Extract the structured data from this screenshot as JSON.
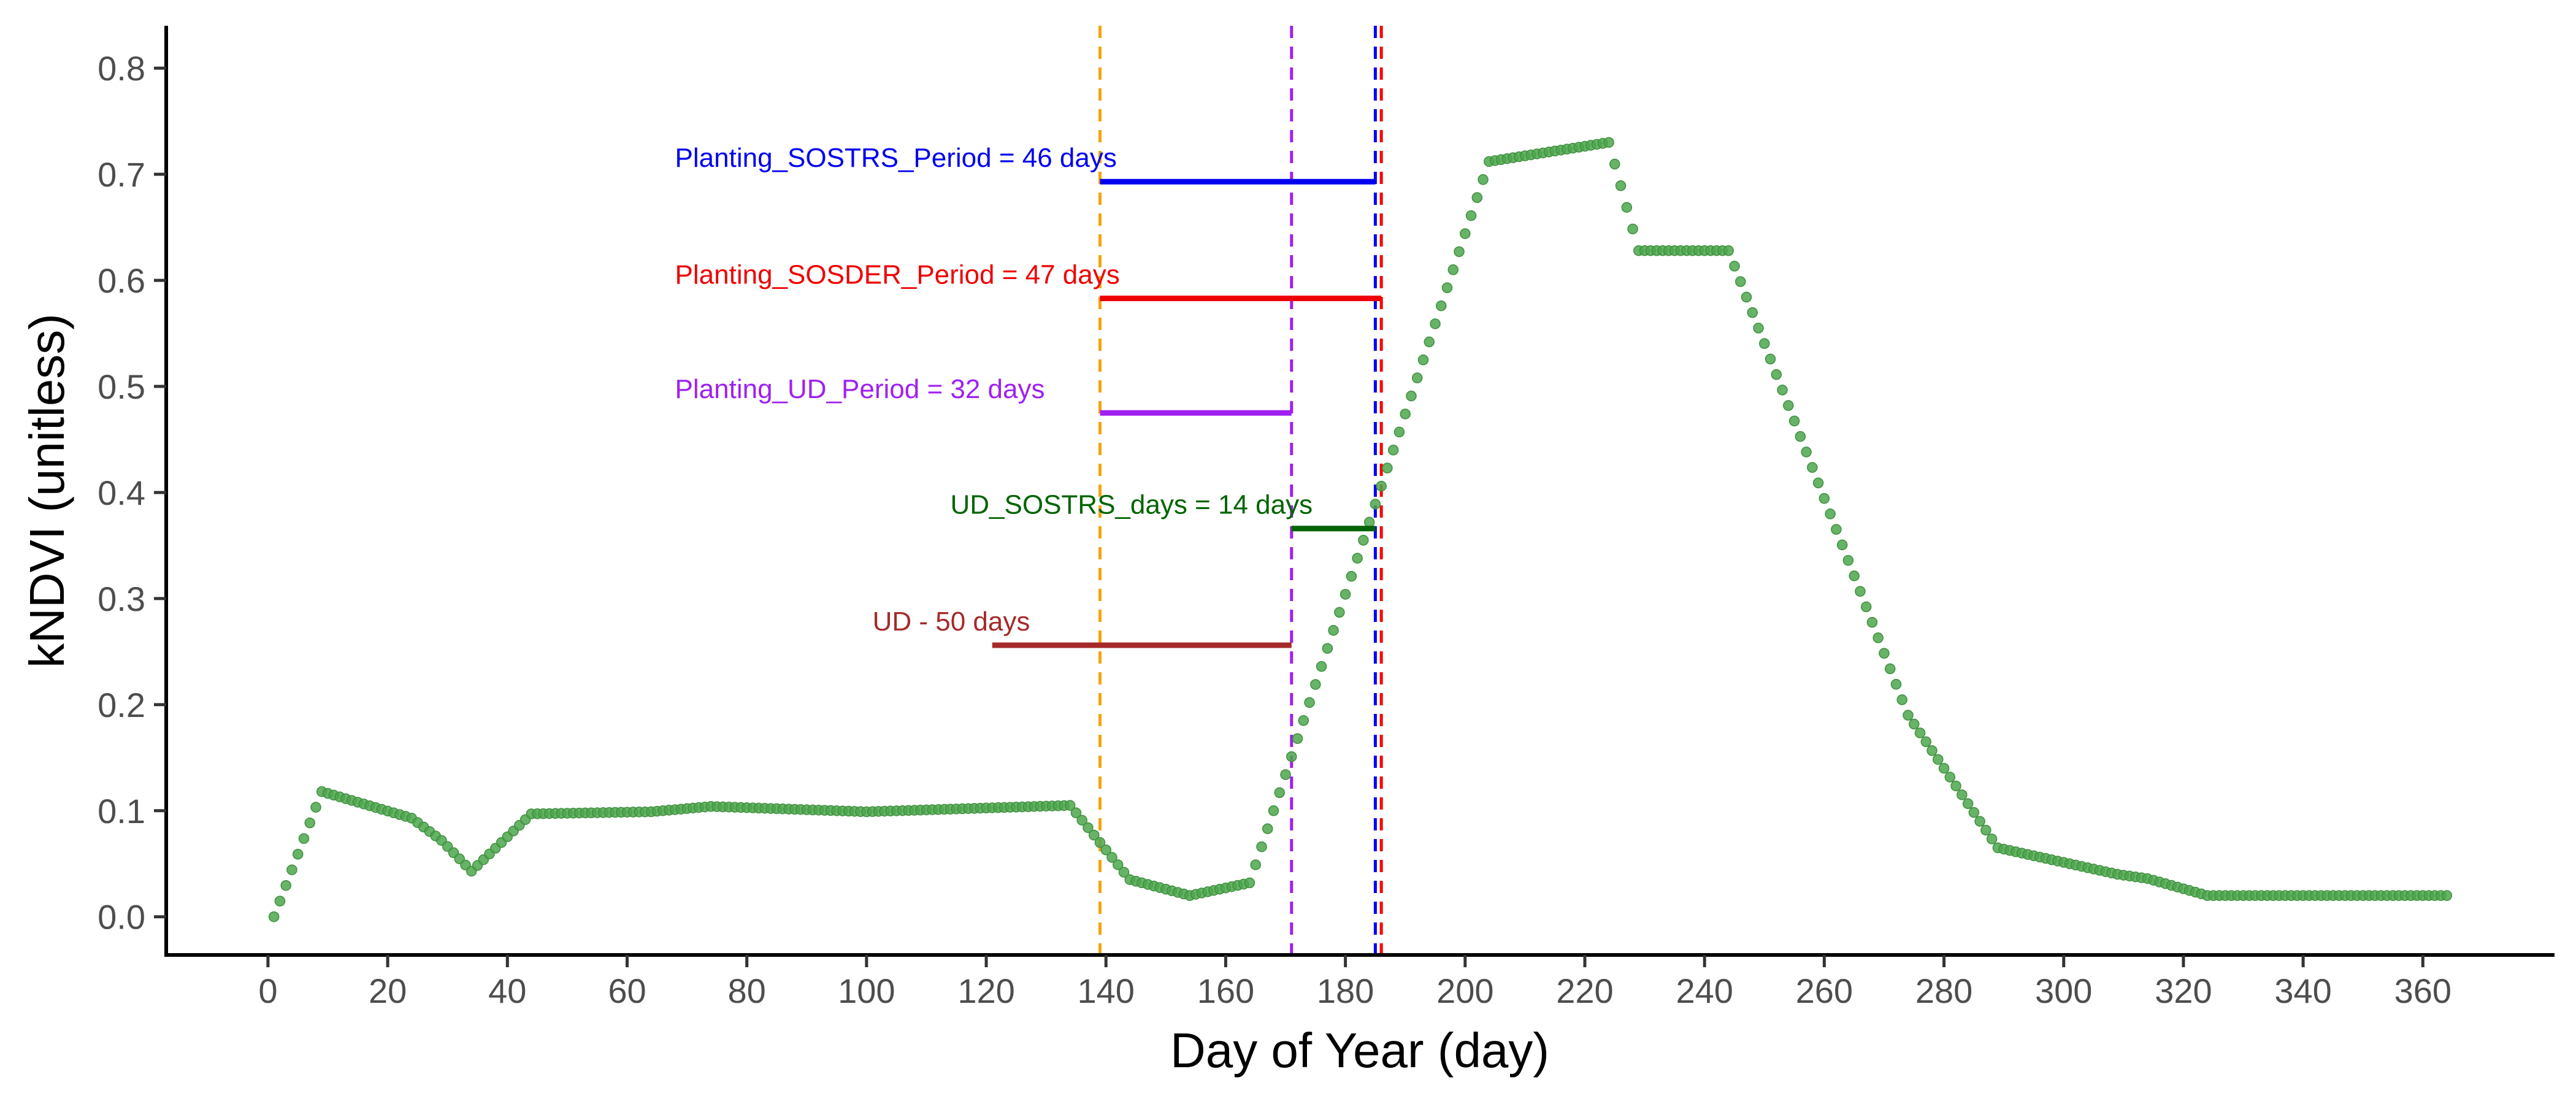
{
  "chart_data": {
    "type": "scatter",
    "title": "",
    "xlabel": "Day of Year (day)",
    "ylabel": "kNDVI (unitless)",
    "xlim": [
      -17,
      382
    ],
    "ylim": [
      -0.036,
      0.84
    ],
    "x_ticks": [
      0,
      20,
      40,
      60,
      80,
      100,
      120,
      140,
      160,
      180,
      200,
      220,
      240,
      260,
      280,
      300,
      320,
      340,
      360
    ],
    "y_ticks": [
      0.0,
      0.1,
      0.2,
      0.3,
      0.4,
      0.5,
      0.6,
      0.7,
      0.8
    ],
    "y_tick_labels": [
      "0.0",
      "0.1",
      "0.2",
      "0.3",
      "0.4",
      "0.5",
      "0.6",
      "0.7",
      "0.8"
    ],
    "grid": false,
    "point_color": "#4ca64c",
    "profile_knots": [
      [
        1,
        0.0
      ],
      [
        9,
        0.118
      ],
      [
        24,
        0.093
      ],
      [
        29,
        0.072
      ],
      [
        34,
        0.043
      ],
      [
        44,
        0.097
      ],
      [
        64,
        0.099
      ],
      [
        74,
        0.104
      ],
      [
        100,
        0.099
      ],
      [
        134,
        0.105
      ],
      [
        144,
        0.035
      ],
      [
        154,
        0.02
      ],
      [
        164,
        0.032
      ],
      [
        204,
        0.712
      ],
      [
        224,
        0.73
      ],
      [
        229,
        0.628
      ],
      [
        244,
        0.628
      ],
      [
        274,
        0.19
      ],
      [
        289,
        0.065
      ],
      [
        309,
        0.04
      ],
      [
        314,
        0.036
      ],
      [
        324,
        0.02
      ],
      [
        364,
        0.02
      ]
    ],
    "vlines": [
      {
        "x": 139,
        "color": "#f5a30a"
      },
      {
        "x": 171,
        "color": "#a020f0"
      },
      {
        "x": 185,
        "color": "#0000ff"
      },
      {
        "x": 186,
        "color": "#ff0000"
      }
    ],
    "annotations": [
      {
        "label": "Planting_SOSTRS_Period = 46 days",
        "x_start": 139,
        "x_end": 185,
        "y": 0.693,
        "color": "#0000ee",
        "label_x": 68,
        "label_y": 0.707
      },
      {
        "label": "Planting_SOSDER_Period = 47 days",
        "x_start": 139,
        "x_end": 186,
        "y": 0.583,
        "color": "#ee0000",
        "label_x": 68,
        "label_y": 0.597
      },
      {
        "label": "Planting_UD_Period = 32 days",
        "x_start": 139,
        "x_end": 171,
        "y": 0.475,
        "color": "#a020f0",
        "label_x": 68,
        "label_y": 0.489
      },
      {
        "label": "UD_SOSTRS_days = 14 days",
        "x_start": 171,
        "x_end": 185,
        "y": 0.366,
        "color": "#006400",
        "label_x": 114,
        "label_y": 0.38
      },
      {
        "label": "UD - 50 days",
        "x_start": 121,
        "x_end": 171,
        "y": 0.256,
        "color": "#a52a2a",
        "label_x": 101,
        "label_y": 0.27
      }
    ]
  }
}
